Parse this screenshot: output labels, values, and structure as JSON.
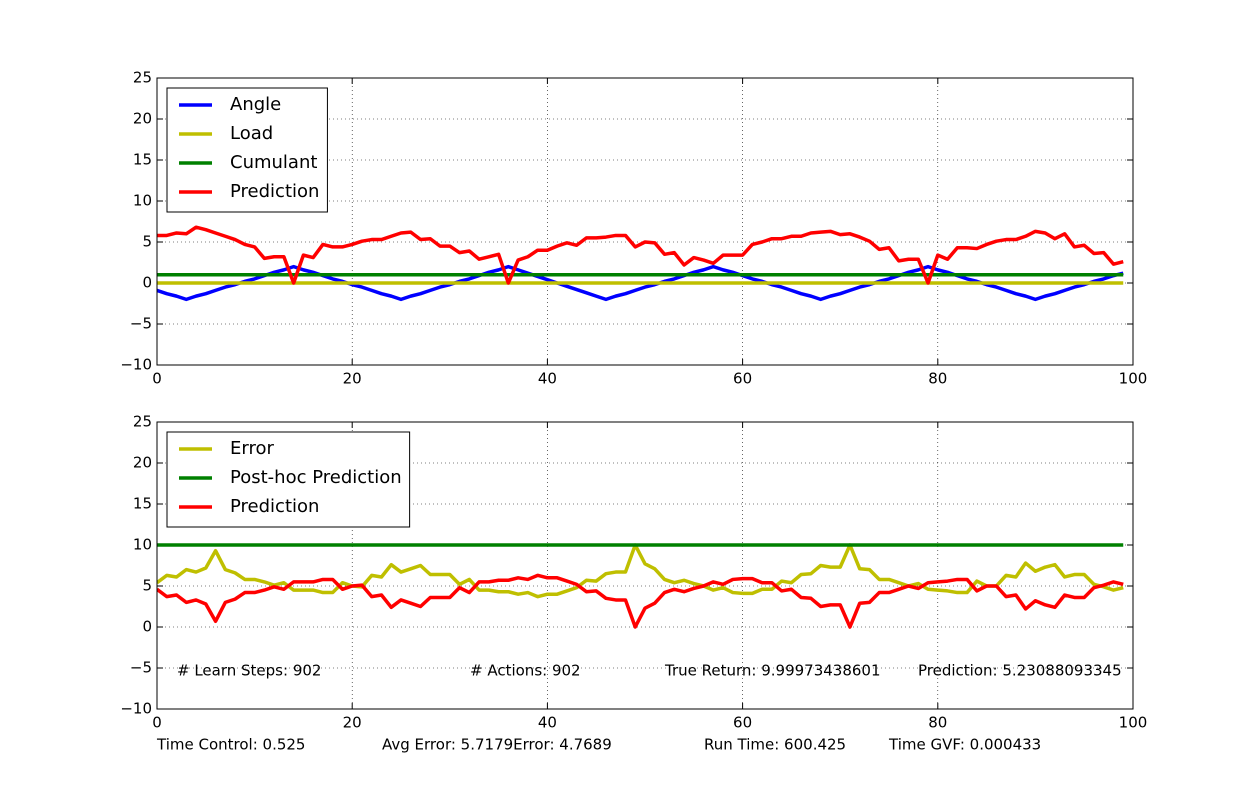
{
  "chart_data": [
    {
      "type": "line",
      "x": [
        0,
        1,
        2,
        3,
        4,
        5,
        6,
        7,
        8,
        9,
        10,
        11,
        12,
        13,
        14,
        15,
        16,
        17,
        18,
        19,
        20,
        21,
        22,
        23,
        24,
        25,
        26,
        27,
        28,
        29,
        30,
        31,
        32,
        33,
        34,
        35,
        36,
        37,
        38,
        39,
        40,
        41,
        42,
        43,
        44,
        45,
        46,
        47,
        48,
        49,
        50,
        51,
        52,
        53,
        54,
        55,
        56,
        57,
        58,
        59,
        60,
        61,
        62,
        63,
        64,
        65,
        66,
        67,
        68,
        69,
        70,
        71,
        72,
        73,
        74,
        75,
        76,
        77,
        78,
        79,
        80,
        81,
        82,
        83,
        84,
        85,
        86,
        87,
        88,
        89,
        90,
        91,
        92,
        93,
        94,
        95,
        96,
        97,
        98,
        99
      ],
      "series": [
        {
          "name": "Angle",
          "color": "#0000ff",
          "values": [
            -0.9,
            -1.3,
            -1.6,
            -2,
            -1.6,
            -1.3,
            -0.9,
            -0.5,
            -0.2,
            0.2,
            0.5,
            0.9,
            1.3,
            1.6,
            2,
            1.6,
            1.3,
            0.9,
            0.5,
            0.2,
            -0.2,
            -0.5,
            -0.9,
            -1.3,
            -1.6,
            -2,
            -1.6,
            -1.3,
            -0.9,
            -0.5,
            -0.2,
            0.2,
            0.5,
            0.9,
            1.3,
            1.6,
            2,
            1.6,
            1.2,
            0.8,
            0.4,
            0,
            -0.4,
            -0.8,
            -1.2,
            -1.6,
            -2,
            -1.6,
            -1.3,
            -0.9,
            -0.5,
            -0.2,
            0.2,
            0.5,
            0.9,
            1.3,
            1.6,
            2,
            1.6,
            1.3,
            0.9,
            0.5,
            0.2,
            -0.2,
            -0.5,
            -0.9,
            -1.3,
            -1.6,
            -2,
            -1.6,
            -1.3,
            -0.9,
            -0.5,
            -0.2,
            0.2,
            0.5,
            0.9,
            1.3,
            1.6,
            2,
            1.6,
            1.3,
            0.9,
            0.5,
            0.2,
            -0.2,
            -0.5,
            -0.9,
            -1.3,
            -1.6,
            -2,
            -1.6,
            -1.3,
            -0.9,
            -0.5,
            -0.2,
            0.2,
            0.5,
            0.9,
            1.2
          ]
        },
        {
          "name": "Load",
          "color": "#bfbf00",
          "values": [
            0,
            0,
            0,
            0,
            0,
            0,
            0,
            0,
            0,
            0,
            0,
            0,
            0,
            0,
            0,
            0,
            0,
            0,
            0,
            0,
            0,
            0,
            0,
            0,
            0,
            0,
            0,
            0,
            0,
            0,
            0,
            0,
            0,
            0,
            0,
            0,
            0,
            0,
            0,
            0,
            0,
            0,
            0,
            0,
            0,
            0,
            0,
            0,
            0,
            0,
            0,
            0,
            0,
            0,
            0,
            0,
            0,
            0,
            0,
            0,
            0,
            0,
            0,
            0,
            0,
            0,
            0,
            0,
            0,
            0,
            0,
            0,
            0,
            0,
            0,
            0,
            0,
            0,
            0,
            0,
            0,
            0,
            0,
            0,
            0,
            0,
            0,
            0,
            0,
            0,
            0,
            0,
            0,
            0,
            0,
            0,
            0,
            0,
            0,
            0
          ]
        },
        {
          "name": "Cumulant",
          "color": "#008000",
          "values": [
            1,
            1,
            1,
            1,
            1,
            1,
            1,
            1,
            1,
            1,
            1,
            1,
            1,
            1,
            1,
            1,
            1,
            1,
            1,
            1,
            1,
            1,
            1,
            1,
            1,
            1,
            1,
            1,
            1,
            1,
            1,
            1,
            1,
            1,
            1,
            1,
            1,
            1,
            1,
            1,
            1,
            1,
            1,
            1,
            1,
            1,
            1,
            1,
            1,
            1,
            1,
            1,
            1,
            1,
            1,
            1,
            1,
            1,
            1,
            1,
            1,
            1,
            1,
            1,
            1,
            1,
            1,
            1,
            1,
            1,
            1,
            1,
            1,
            1,
            1,
            1,
            1,
            1,
            1,
            1,
            1,
            1,
            1,
            1,
            1,
            1,
            1,
            1,
            1,
            1,
            1,
            1,
            1,
            1,
            1,
            1,
            1,
            1,
            1,
            1
          ]
        },
        {
          "name": "Prediction",
          "color": "#ff0000",
          "values": [
            5.8,
            5.8,
            6.1,
            6.0,
            6.8,
            6.5,
            6.1,
            5.7,
            5.3,
            4.7,
            4.4,
            3.0,
            3.2,
            3.2,
            0,
            3.4,
            3.1,
            4.7,
            4.4,
            4.4,
            4.7,
            5.1,
            5.3,
            5.3,
            5.7,
            6.1,
            6.2,
            5.3,
            5.4,
            4.5,
            4.5,
            3.7,
            3.9,
            2.9,
            3.2,
            3.5,
            0,
            2.8,
            3.2,
            4.0,
            4.0,
            4.5,
            4.9,
            4.6,
            5.5,
            5.5,
            5.6,
            5.8,
            5.8,
            4.4,
            5.0,
            4.9,
            3.5,
            3.7,
            2.2,
            3.1,
            2.8,
            2.4,
            3.4,
            3.4,
            3.4,
            4.7,
            5.0,
            5.4,
            5.4,
            5.7,
            5.7,
            6.1,
            6.2,
            6.3,
            5.9,
            6.0,
            5.6,
            5.1,
            4.1,
            4.3,
            2.7,
            2.9,
            2.9,
            0,
            3.4,
            2.9,
            4.3,
            4.3,
            4.2,
            4.7,
            5.1,
            5.3,
            5.3,
            5.7,
            6.3,
            6.1,
            5.4,
            6.0,
            4.4,
            4.6,
            3.6,
            3.7,
            2.3,
            2.6
          ]
        }
      ],
      "xlim": [
        0,
        100
      ],
      "xticks": [
        0,
        20,
        40,
        60,
        80,
        100
      ],
      "ylim": [
        -10,
        25
      ],
      "yticks": [
        {
          "value": -10,
          "label": "−10"
        },
        {
          "value": -5,
          "label": "−5"
        },
        0,
        5,
        10,
        15,
        20,
        25
      ],
      "grid": true,
      "legend": "upper left"
    },
    {
      "type": "line",
      "x": [
        0,
        1,
        2,
        3,
        4,
        5,
        6,
        7,
        8,
        9,
        10,
        11,
        12,
        13,
        14,
        15,
        16,
        17,
        18,
        19,
        20,
        21,
        22,
        23,
        24,
        25,
        26,
        27,
        28,
        29,
        30,
        31,
        32,
        33,
        34,
        35,
        36,
        37,
        38,
        39,
        40,
        41,
        42,
        43,
        44,
        45,
        46,
        47,
        48,
        49,
        50,
        51,
        52,
        53,
        54,
        55,
        56,
        57,
        58,
        59,
        60,
        61,
        62,
        63,
        64,
        65,
        66,
        67,
        68,
        69,
        70,
        71,
        72,
        73,
        74,
        75,
        76,
        77,
        78,
        79,
        80,
        81,
        82,
        83,
        84,
        85,
        86,
        87,
        88,
        89,
        90,
        91,
        92,
        93,
        94,
        95,
        96,
        97,
        98,
        99
      ],
      "series": [
        {
          "name": "Error",
          "color": "#bfbf00",
          "values": [
            5.4,
            6.3,
            6.1,
            7.0,
            6.7,
            7.2,
            9.3,
            7.0,
            6.6,
            5.8,
            5.8,
            5.5,
            5.1,
            5.4,
            4.5,
            4.5,
            4.5,
            4.2,
            4.2,
            5.4,
            5.0,
            4.9,
            6.3,
            6.1,
            7.6,
            6.7,
            7.1,
            7.5,
            6.4,
            6.4,
            6.4,
            5.2,
            5.8,
            4.5,
            4.5,
            4.3,
            4.3,
            4.0,
            4.2,
            3.7,
            4.0,
            4.0,
            4.4,
            4.8,
            5.7,
            5.6,
            6.5,
            6.7,
            6.7,
            10,
            7.7,
            7.1,
            5.8,
            5.4,
            5.7,
            5.3,
            5.0,
            4.5,
            4.8,
            4.2,
            4.1,
            4.1,
            4.6,
            4.6,
            5.6,
            5.4,
            6.4,
            6.5,
            7.5,
            7.3,
            7.3,
            10,
            7.1,
            7.0,
            5.8,
            5.8,
            5.4,
            5.0,
            5.3,
            4.6,
            4.5,
            4.4,
            4.2,
            4.2,
            5.6,
            5.0,
            5.0,
            6.3,
            6.1,
            7.8,
            6.8,
            7.3,
            7.6,
            6.1,
            6.4,
            6.4,
            5.2,
            4.9,
            4.5,
            4.8
          ]
        },
        {
          "name": "Post-hoc Prediction",
          "color": "#008000",
          "values": [
            10,
            10,
            10,
            10,
            10,
            10,
            10,
            10,
            10,
            10,
            10,
            10,
            10,
            10,
            10,
            10,
            10,
            10,
            10,
            10,
            10,
            10,
            10,
            10,
            10,
            10,
            10,
            10,
            10,
            10,
            10,
            10,
            10,
            10,
            10,
            10,
            10,
            10,
            10,
            10,
            10,
            10,
            10,
            10,
            10,
            10,
            10,
            10,
            10,
            10,
            10,
            10,
            10,
            10,
            10,
            10,
            10,
            10,
            10,
            10,
            10,
            10,
            10,
            10,
            10,
            10,
            10,
            10,
            10,
            10,
            10,
            10,
            10,
            10,
            10,
            10,
            10,
            10,
            10,
            10,
            10,
            10,
            10,
            10,
            10,
            10,
            10,
            10,
            10,
            10,
            10,
            10,
            10,
            10,
            10,
            10,
            10,
            10,
            10,
            10
          ]
        },
        {
          "name": "Prediction",
          "color": "#ff0000",
          "values": [
            4.6,
            3.7,
            3.9,
            3.0,
            3.3,
            2.8,
            0.7,
            3.0,
            3.4,
            4.2,
            4.2,
            4.5,
            4.9,
            4.6,
            5.5,
            5.5,
            5.5,
            5.8,
            5.8,
            4.6,
            5.0,
            5.1,
            3.7,
            3.9,
            2.4,
            3.3,
            2.9,
            2.5,
            3.6,
            3.6,
            3.6,
            4.8,
            4.2,
            5.5,
            5.5,
            5.7,
            5.7,
            6.0,
            5.8,
            6.3,
            6.0,
            6.0,
            5.6,
            5.2,
            4.3,
            4.4,
            3.5,
            3.3,
            3.3,
            0,
            2.3,
            2.9,
            4.2,
            4.6,
            4.3,
            4.7,
            5.0,
            5.5,
            5.2,
            5.8,
            5.9,
            5.9,
            5.4,
            5.4,
            4.4,
            4.6,
            3.6,
            3.5,
            2.5,
            2.7,
            2.7,
            0,
            2.9,
            3.0,
            4.2,
            4.2,
            4.6,
            5.0,
            4.7,
            5.4,
            5.5,
            5.6,
            5.8,
            5.8,
            4.4,
            5.0,
            5.0,
            3.7,
            3.9,
            2.2,
            3.2,
            2.7,
            2.4,
            3.9,
            3.6,
            3.6,
            4.8,
            5.1,
            5.5,
            5.2
          ]
        }
      ],
      "xlim": [
        0,
        100
      ],
      "xticks": [
        0,
        20,
        40,
        60,
        80,
        100
      ],
      "ylim": [
        -10,
        25
      ],
      "yticks": [
        {
          "value": -10,
          "label": "−10"
        },
        {
          "value": -5,
          "label": "−5"
        },
        0,
        5,
        10,
        15,
        20,
        25
      ],
      "grid": true,
      "legend": "upper left",
      "annotations": [
        "# Learn Steps: 902",
        "# Actions: 902",
        "True Return: 9.99973438601",
        "Prediction: 5.23088093345"
      ]
    }
  ],
  "footer": [
    "Time Control: 0.525",
    "Avg Error: 5.7179Error: 4.7689",
    "Run Time: 600.425",
    "Time GVF: 0.000433"
  ]
}
